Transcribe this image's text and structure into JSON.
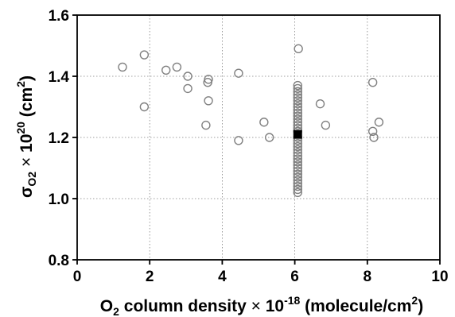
{
  "chart_data": {
    "type": "scatter",
    "xlabel_parts": {
      "main": "O",
      "main_sub": "2",
      "rest": " column density ",
      "times": "×",
      "factor": " 10",
      "factor_sup": "-18",
      "unit": " (molecule/cm",
      "unit_sup": "2",
      "unit_end": ")"
    },
    "ylabel_parts": {
      "sigma": "σ",
      "sigma_sub": "O2",
      "times": " × ",
      "factor": "10",
      "factor_sup": "20",
      "unit": " (cm",
      "unit_sup": "2",
      "unit_end": ")"
    },
    "xlim": [
      0,
      10
    ],
    "ylim": [
      0.8,
      1.6
    ],
    "xticks": [
      0,
      2,
      4,
      6,
      8,
      10
    ],
    "yticks": [
      0.8,
      1.0,
      1.2,
      1.4,
      1.6
    ],
    "xtick_labels": [
      "0",
      "2",
      "4",
      "6",
      "8",
      "10"
    ],
    "ytick_labels": [
      "0.8",
      "1.0",
      "1.2",
      "1.4",
      "1.6"
    ],
    "grid": true,
    "series": [
      {
        "marker": "open-circle",
        "color": "#808080",
        "points": [
          [
            1.25,
            1.43
          ],
          [
            1.85,
            1.47
          ],
          [
            1.85,
            1.3
          ],
          [
            2.45,
            1.42
          ],
          [
            2.75,
            1.43
          ],
          [
            3.05,
            1.4
          ],
          [
            3.05,
            1.36
          ],
          [
            3.55,
            1.24
          ],
          [
            3.6,
            1.38
          ],
          [
            3.62,
            1.39
          ],
          [
            3.62,
            1.32
          ],
          [
            4.45,
            1.41
          ],
          [
            4.45,
            1.19
          ],
          [
            5.15,
            1.25
          ],
          [
            5.3,
            1.2
          ],
          [
            6.1,
            1.49
          ],
          [
            6.7,
            1.31
          ],
          [
            6.85,
            1.24
          ],
          [
            8.15,
            1.38
          ],
          [
            8.15,
            1.22
          ],
          [
            8.18,
            1.2
          ],
          [
            8.32,
            1.25
          ],
          [
            6.08,
            1.37
          ],
          [
            6.08,
            1.36
          ],
          [
            6.08,
            1.35
          ],
          [
            6.08,
            1.34
          ],
          [
            6.08,
            1.33
          ],
          [
            6.08,
            1.32
          ],
          [
            6.08,
            1.31
          ],
          [
            6.08,
            1.3
          ],
          [
            6.08,
            1.29
          ],
          [
            6.08,
            1.28
          ],
          [
            6.08,
            1.27
          ],
          [
            6.08,
            1.26
          ],
          [
            6.08,
            1.25
          ],
          [
            6.08,
            1.24
          ],
          [
            6.08,
            1.23
          ],
          [
            6.08,
            1.22
          ],
          [
            6.08,
            1.2
          ],
          [
            6.08,
            1.19
          ],
          [
            6.08,
            1.18
          ],
          [
            6.08,
            1.17
          ],
          [
            6.08,
            1.16
          ],
          [
            6.08,
            1.15
          ],
          [
            6.08,
            1.14
          ],
          [
            6.08,
            1.13
          ],
          [
            6.08,
            1.12
          ],
          [
            6.08,
            1.11
          ],
          [
            6.08,
            1.1
          ],
          [
            6.08,
            1.09
          ],
          [
            6.08,
            1.08
          ],
          [
            6.08,
            1.07
          ],
          [
            6.08,
            1.06
          ],
          [
            6.08,
            1.05
          ],
          [
            6.08,
            1.04
          ],
          [
            6.08,
            1.03
          ],
          [
            6.08,
            1.02
          ]
        ]
      },
      {
        "marker": "filled-square",
        "color": "#000000",
        "points": [
          [
            6.08,
            1.21
          ]
        ]
      }
    ]
  }
}
